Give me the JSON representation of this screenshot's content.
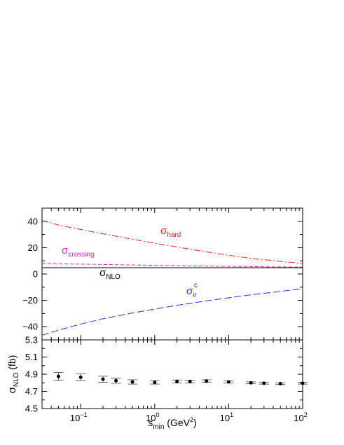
{
  "chart_data": [
    {
      "type": "line",
      "xscale": "log",
      "xlim": [
        0.03,
        100
      ],
      "ylim": [
        -50,
        50
      ],
      "y_ticks": [
        40,
        20,
        0,
        -20,
        -40
      ],
      "y_tick_labels": [
        "40",
        "20",
        "0",
        "−20",
        "−40"
      ],
      "series": [
        {
          "name": "hard",
          "label_main": "σ",
          "label_sub": "hard",
          "label_sup": "",
          "color": "#e8221d",
          "dash": "dashdot",
          "x": [
            0.03,
            0.05,
            0.1,
            0.2,
            0.5,
            1,
            2,
            5,
            10,
            20,
            50,
            100
          ],
          "y": [
            40.5,
            37.2,
            33.8,
            30.5,
            26.4,
            23.4,
            20.5,
            16.8,
            14.2,
            11.9,
            9.6,
            7.9
          ]
        },
        {
          "name": "crossing",
          "label_main": "σ",
          "label_sub": "crossing",
          "label_sup": "",
          "color": "#e020d0",
          "dash": "dashed-short",
          "x": [
            0.03,
            0.1,
            1,
            10,
            100
          ],
          "y": [
            8.0,
            7.5,
            6.6,
            5.8,
            5.2
          ]
        },
        {
          "name": "NLO",
          "label_main": "σ",
          "label_sub": "NLO",
          "label_sup": "",
          "color": "#000000",
          "dash": "solid",
          "x": [
            0.03,
            100
          ],
          "y": [
            4.8,
            4.8
          ]
        },
        {
          "name": "ir^c",
          "label_main": "σ",
          "label_sub": "ir",
          "label_sup": "c",
          "color": "#2a2ae0",
          "dash": "dashed-long",
          "x": [
            0.03,
            0.05,
            0.1,
            0.2,
            0.5,
            1,
            2,
            5,
            10,
            20,
            50,
            100
          ],
          "y": [
            -46.5,
            -42.6,
            -38.0,
            -34.0,
            -29.6,
            -26.6,
            -23.8,
            -20.4,
            -18.0,
            -15.8,
            -13.2,
            -11.1
          ]
        }
      ]
    },
    {
      "type": "scatter",
      "xscale": "log",
      "xlim": [
        0.03,
        100
      ],
      "ylim": [
        4.5,
        5.3
      ],
      "y_ticks": [
        5.3,
        5.1,
        4.9,
        4.7,
        4.5
      ],
      "y_tick_labels": [
        "5.3",
        "5.1",
        "4.9",
        "4.7",
        "4.5"
      ],
      "x_ticks": [
        0.1,
        1,
        10,
        100
      ],
      "x_tick_labels": [
        {
          "base": "10",
          "exp": "−1"
        },
        {
          "base": "10",
          "exp": "0"
        },
        {
          "base": "10",
          "exp": "1"
        },
        {
          "base": "10",
          "exp": "2"
        }
      ],
      "ylabel": {
        "main": "σ",
        "sub": "NLO",
        "unit": " (fb)"
      },
      "xlabel": {
        "main": "s",
        "sub": "min",
        "unit_pre": " (GeV",
        "sup": "2",
        "unit_post": ")"
      },
      "points": [
        {
          "x": 0.05,
          "y": 4.875,
          "err": 0.045
        },
        {
          "x": 0.1,
          "y": 4.865,
          "err": 0.04
        },
        {
          "x": 0.2,
          "y": 4.842,
          "err": 0.035
        },
        {
          "x": 0.3,
          "y": 4.825,
          "err": 0.03
        },
        {
          "x": 0.5,
          "y": 4.81,
          "err": 0.025
        },
        {
          "x": 1,
          "y": 4.805,
          "err": 0.02
        },
        {
          "x": 2,
          "y": 4.815,
          "err": 0.018
        },
        {
          "x": 3,
          "y": 4.815,
          "err": 0.016
        },
        {
          "x": 5,
          "y": 4.82,
          "err": 0.015
        },
        {
          "x": 10,
          "y": 4.81,
          "err": 0.012
        },
        {
          "x": 20,
          "y": 4.8,
          "err": 0.011
        },
        {
          "x": 30,
          "y": 4.795,
          "err": 0.01
        },
        {
          "x": 50,
          "y": 4.79,
          "err": 0.01
        },
        {
          "x": 100,
          "y": 4.795,
          "err": 0.01
        }
      ]
    }
  ]
}
